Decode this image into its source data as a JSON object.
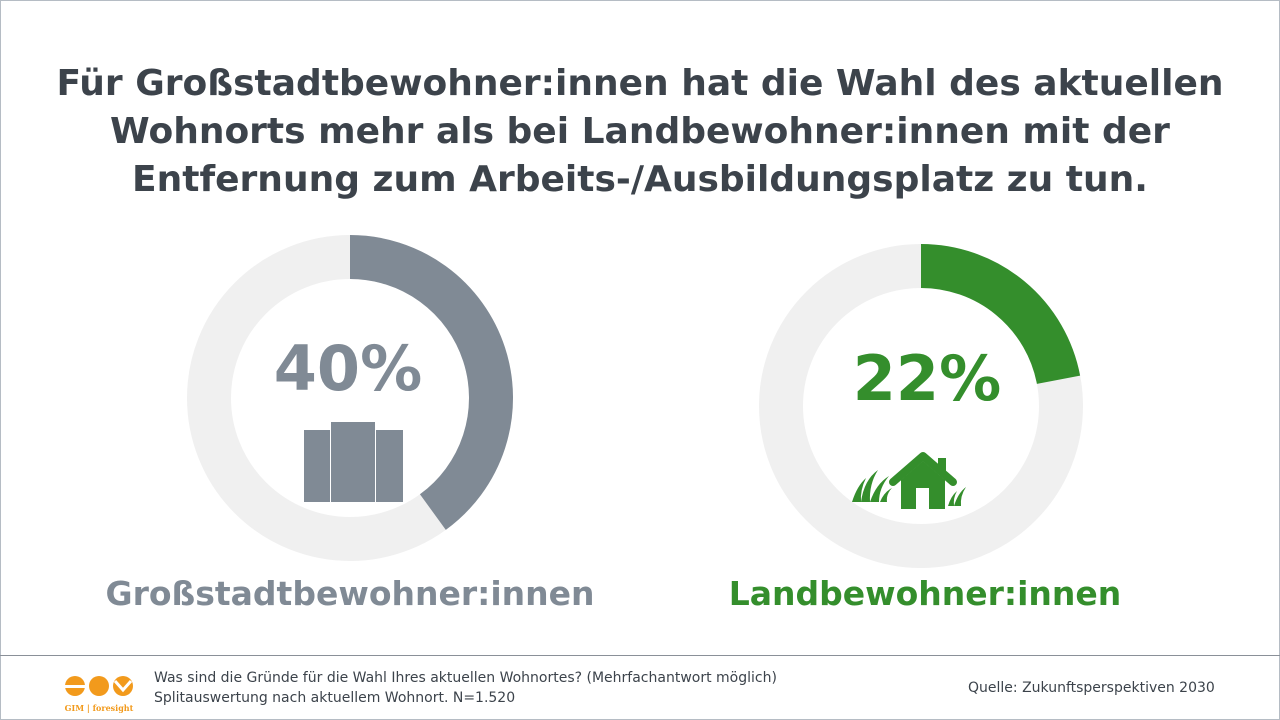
{
  "title_lines": [
    "Für Großstadtbewohner:innen hat die Wahl des aktuellen",
    "Wohnorts mehr als bei Landbewohner:innen mit der",
    "Entfernung zum Arbeits-/Ausbildungsplatz zu tun."
  ],
  "chart_data": [
    {
      "type": "pie",
      "variant": "donut",
      "categories": [
        "Großstadtbewohner:innen"
      ],
      "values": [
        40
      ],
      "value_label": "40%",
      "label": "Großstadtbewohner:innen",
      "color": "#808a95",
      "track_color": "#f0f0f0",
      "icon": "city-buildings-icon"
    },
    {
      "type": "pie",
      "variant": "donut",
      "categories": [
        "Landbewohner:innen"
      ],
      "values": [
        22
      ],
      "value_label": "22%",
      "label": "Landbewohner:innen",
      "color": "#348e2c",
      "track_color": "#f0f0f0",
      "icon": "house-grass-icon"
    }
  ],
  "footer": {
    "question_lines": [
      "Was sind die Gründe für die Wahl Ihres aktuellen Wohnortes? (Mehrfachantwort möglich)",
      "Splitauswertung nach aktuellem Wohnort. N=1.520"
    ],
    "source": "Quelle: Zukunftsperspektiven 2030",
    "logo_text": "GIM | foresight",
    "logo_color": "#f29a1c"
  }
}
